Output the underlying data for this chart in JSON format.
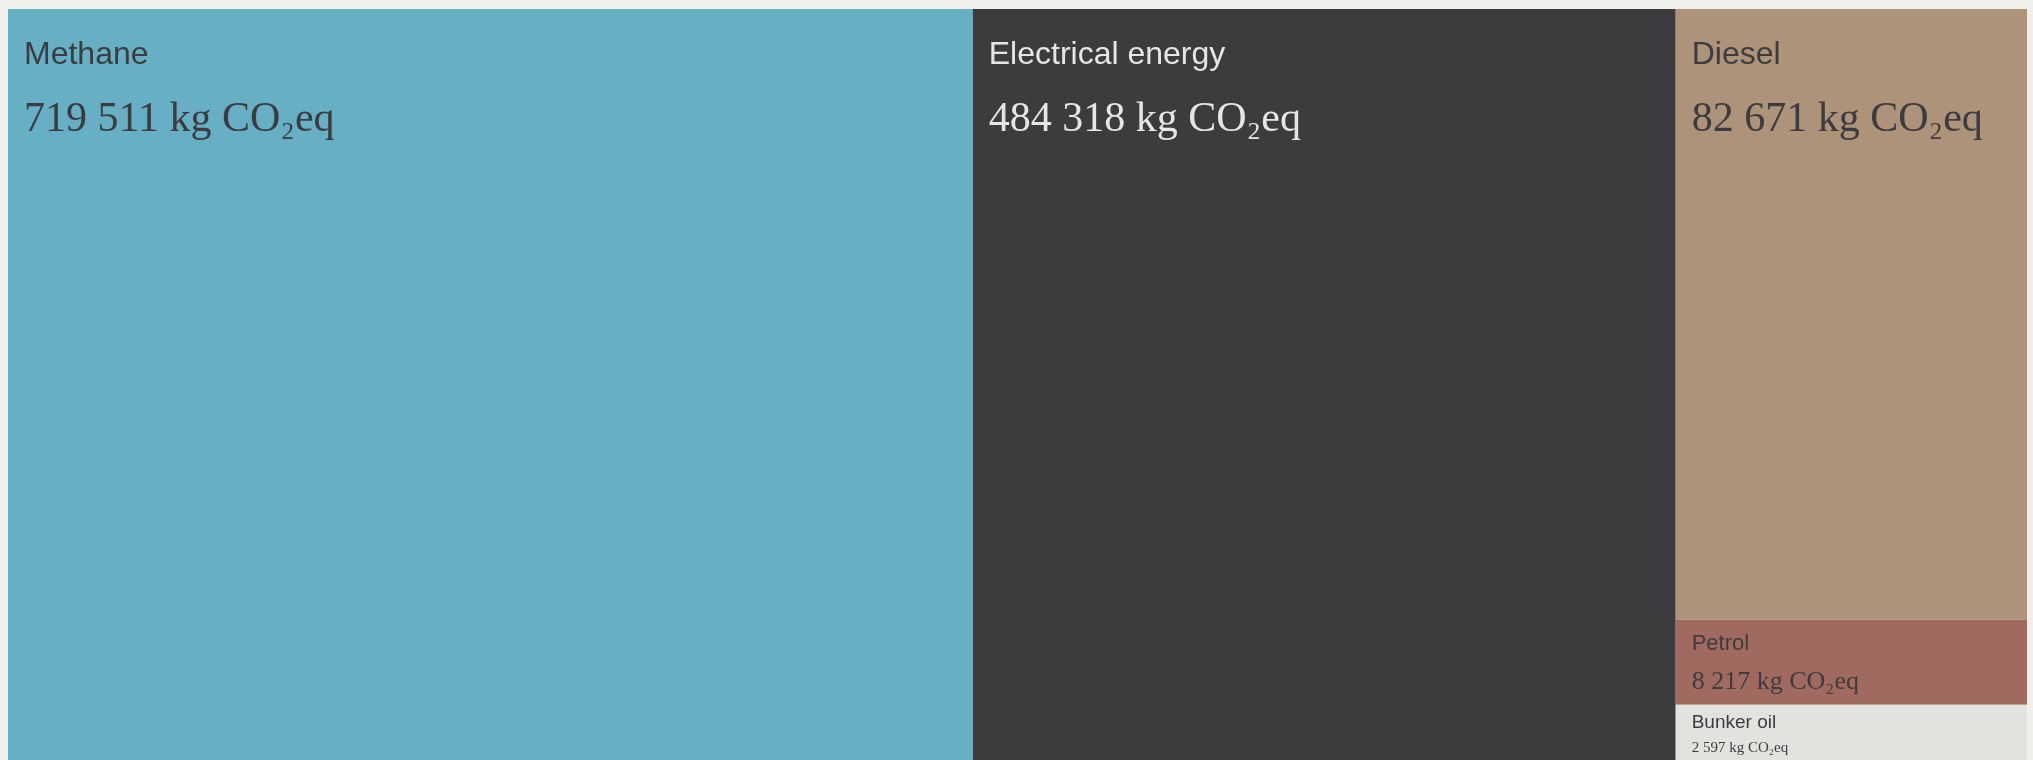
{
  "chart_data": {
    "type": "other",
    "categories": [
      "Methane",
      "Electrical energy",
      "Diesel",
      "Petrol",
      "Bunker oil"
    ],
    "values": [
      719511,
      484318,
      82671,
      8217,
      2597
    ],
    "value_labels": [
      "719 511 kg CO₂eq",
      "484 318 kg CO₂eq",
      "82 671 kg CO₂eq",
      "8 217 kg CO₂eq",
      "2 597 kg CO₂eq"
    ],
    "colors": [
      "#67afc5",
      "#3c3c3f",
      "#ad937a",
      "#a06a60",
      "#e4e2de"
    ]
  }
}
